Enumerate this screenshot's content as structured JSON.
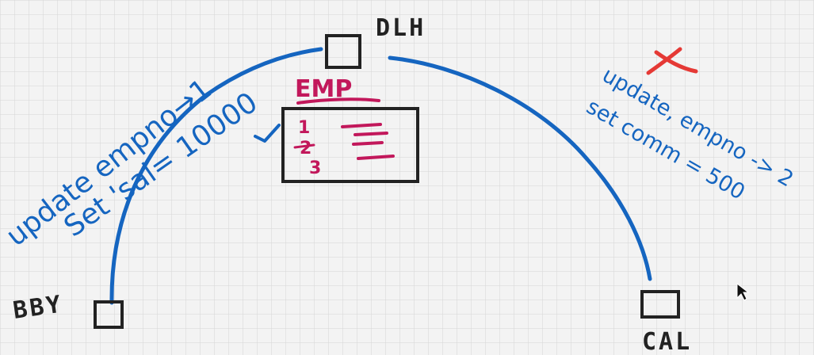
{
  "nodes": {
    "dlh": "DLH",
    "bby": "BBY",
    "cal": "CAL"
  },
  "table": {
    "name": "EMP",
    "rows": [
      "1",
      "2",
      "3"
    ]
  },
  "notes": {
    "left_line1": "update empno→1",
    "left_line2": "Set 'sal= 10000",
    "right_line1": "update, empno -> 2",
    "right_line2": "set comm = 500"
  },
  "colors": {
    "grid": "#d6d6d6",
    "ink": "#222222",
    "blue": "#1565c0",
    "pink": "#c2185b",
    "red": "#e53935"
  },
  "icons": {
    "cursor": "mouse-pointer-icon",
    "reject": "red-x-mark-icon",
    "accept": "blue-check-mark-icon"
  }
}
